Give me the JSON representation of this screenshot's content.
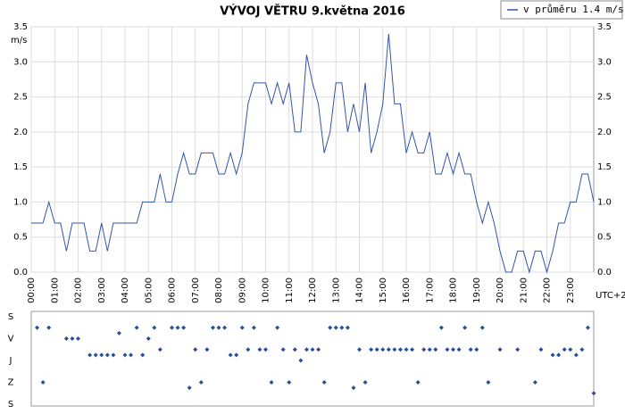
{
  "chart_data": [
    {
      "type": "line",
      "title": "VÝVOJ VĚTRU  9.května 2016",
      "ylabel": "m/s",
      "xlabel": "UTC+2",
      "xlim": [
        0,
        24
      ],
      "xticks": [
        {
          "value": 0,
          "label": "00:00"
        },
        {
          "value": 1,
          "label": "01:00"
        },
        {
          "value": 2,
          "label": "02:00"
        },
        {
          "value": 3,
          "label": "03:00"
        },
        {
          "value": 4,
          "label": "04:00"
        },
        {
          "value": 5,
          "label": "05:00"
        },
        {
          "value": 6,
          "label": "06:00"
        },
        {
          "value": 7,
          "label": "07:00"
        },
        {
          "value": 8,
          "label": "08:00"
        },
        {
          "value": 9,
          "label": "09:00"
        },
        {
          "value": 10,
          "label": "10:00"
        },
        {
          "value": 11,
          "label": "11:00"
        },
        {
          "value": 12,
          "label": "12:00"
        },
        {
          "value": 13,
          "label": "13:00"
        },
        {
          "value": 14,
          "label": "14:00"
        },
        {
          "value": 15,
          "label": "15:00"
        },
        {
          "value": 16,
          "label": "16:00"
        },
        {
          "value": 17,
          "label": "17:00"
        },
        {
          "value": 18,
          "label": "18:00"
        },
        {
          "value": 19,
          "label": "19:00"
        },
        {
          "value": 20,
          "label": "20:00"
        },
        {
          "value": 21,
          "label": "21:00"
        },
        {
          "value": 22,
          "label": "22:00"
        },
        {
          "value": 23,
          "label": "23:00"
        }
      ],
      "ylim": [
        0,
        3.5
      ],
      "yticks": [
        {
          "value": 0,
          "label": "0.0"
        },
        0.5,
        {
          "value": 1,
          "label": "1.0"
        },
        1.5,
        {
          "value": 2,
          "label": "2.0"
        },
        2.5,
        {
          "value": 3,
          "label": "3.0"
        },
        3.5
      ],
      "grid": true,
      "legend": "top-right",
      "x": [
        0,
        0.25,
        0.5,
        0.75,
        1,
        1.25,
        1.5,
        1.75,
        2,
        2.25,
        2.5,
        2.75,
        3,
        3.25,
        3.5,
        3.75,
        4,
        4.25,
        4.5,
        4.75,
        5,
        5.25,
        5.5,
        5.75,
        6,
        6.25,
        6.5,
        6.75,
        7,
        7.25,
        7.5,
        7.75,
        8,
        8.25,
        8.5,
        8.75,
        9,
        9.25,
        9.5,
        9.75,
        10,
        10.25,
        10.5,
        10.75,
        11,
        11.25,
        11.5,
        11.75,
        12,
        12.25,
        12.5,
        12.75,
        13,
        13.25,
        13.5,
        13.75,
        14,
        14.25,
        14.5,
        14.75,
        15,
        15.25,
        15.5,
        15.75,
        16,
        16.25,
        16.5,
        16.75,
        17,
        17.25,
        17.5,
        17.75,
        18,
        18.25,
        18.5,
        18.75,
        19,
        19.25,
        19.5,
        19.75,
        20,
        20.25,
        20.5,
        20.75,
        21,
        21.25,
        21.5,
        21.75,
        22,
        22.25,
        22.5,
        22.75,
        23,
        23.25,
        23.5,
        23.75,
        24
      ],
      "series": [
        {
          "name": "v průměru 1.4 m/s",
          "color": "#3355aa",
          "values": [
            0.7,
            0.7,
            0.7,
            1.0,
            0.7,
            0.7,
            0.3,
            0.7,
            0.7,
            0.7,
            0.3,
            0.3,
            0.7,
            0.3,
            0.7,
            0.7,
            0.7,
            0.7,
            0.7,
            1.0,
            1.0,
            1.0,
            1.4,
            1.0,
            1.0,
            1.4,
            1.7,
            1.4,
            1.4,
            1.7,
            1.7,
            1.7,
            1.4,
            1.4,
            1.7,
            1.4,
            1.7,
            2.4,
            2.7,
            2.7,
            2.7,
            2.4,
            2.7,
            2.4,
            2.7,
            2.0,
            2.0,
            3.1,
            2.7,
            2.4,
            1.7,
            2.0,
            2.7,
            2.7,
            2.0,
            2.4,
            2.0,
            2.7,
            1.7,
            2.0,
            2.4,
            3.4,
            2.4,
            2.4,
            1.7,
            2.0,
            1.7,
            1.7,
            2.0,
            1.4,
            1.4,
            1.7,
            1.4,
            1.7,
            1.4,
            1.4,
            1.0,
            0.7,
            1.0,
            0.7,
            0.3,
            0,
            0,
            0.3,
            0.3,
            0,
            0.3,
            0.3,
            0,
            0.3,
            0.7,
            0.7,
            1.0,
            1.0,
            1.4,
            1.4,
            1.0
          ]
        }
      ]
    },
    {
      "type": "scatter",
      "xlim": [
        0,
        24
      ],
      "ylim": [
        0,
        360
      ],
      "yticks": [
        {
          "value": 0,
          "label": "S"
        },
        {
          "value": 90,
          "label": "V"
        },
        {
          "value": 180,
          "label": "J"
        },
        {
          "value": 270,
          "label": "Z"
        },
        {
          "value": 360,
          "label": "S"
        }
      ],
      "color": "#2a4f9a",
      "x": [
        0,
        0.25,
        0.5,
        0.75,
        1,
        1.25,
        1.5,
        1.75,
        2,
        2.25,
        2.5,
        2.75,
        3,
        3.25,
        3.5,
        3.75,
        4,
        4.25,
        4.5,
        4.75,
        5,
        5.25,
        5.5,
        5.75,
        6,
        6.25,
        6.5,
        6.75,
        7,
        7.25,
        7.5,
        7.75,
        8,
        8.25,
        8.5,
        8.75,
        9,
        9.25,
        9.5,
        9.75,
        10,
        10.25,
        10.5,
        10.75,
        11,
        11.25,
        11.5,
        11.75,
        12,
        12.25,
        12.5,
        12.75,
        13,
        13.25,
        13.5,
        13.75,
        14,
        14.25,
        14.5,
        14.75,
        15,
        15.25,
        15.5,
        15.75,
        16,
        16.25,
        16.5,
        16.75,
        17,
        17.25,
        17.5,
        17.75,
        18,
        18.25,
        18.5,
        18.75,
        19,
        19.25,
        19.5,
        19.75,
        20,
        20.25,
        20.5,
        20.75,
        21,
        21.25,
        21.5,
        21.75,
        22,
        22.25,
        22.5,
        22.75,
        23,
        23.25,
        23.5,
        23.75,
        24
      ],
      "values": [
        null,
        45,
        270,
        45,
        null,
        null,
        90,
        90,
        90,
        null,
        157.5,
        157.5,
        157.5,
        157.5,
        157.5,
        67.5,
        157.5,
        157.5,
        45,
        157.5,
        90,
        45,
        135,
        null,
        45,
        45,
        45,
        292.5,
        135,
        270,
        135,
        45,
        45,
        45,
        157.5,
        157.5,
        45,
        135,
        45,
        135,
        135,
        270,
        45,
        135,
        270,
        135,
        180,
        135,
        135,
        135,
        270,
        45,
        45,
        45,
        45,
        292.5,
        135,
        270,
        135,
        135,
        135,
        135,
        135,
        135,
        135,
        135,
        270,
        135,
        135,
        135,
        45,
        135,
        135,
        135,
        45,
        135,
        135,
        45,
        270,
        null,
        135,
        null,
        null,
        135,
        null,
        null,
        270,
        135,
        null,
        157.5,
        157.5,
        135,
        135,
        157.5,
        135,
        45,
        315
      ]
    }
  ]
}
